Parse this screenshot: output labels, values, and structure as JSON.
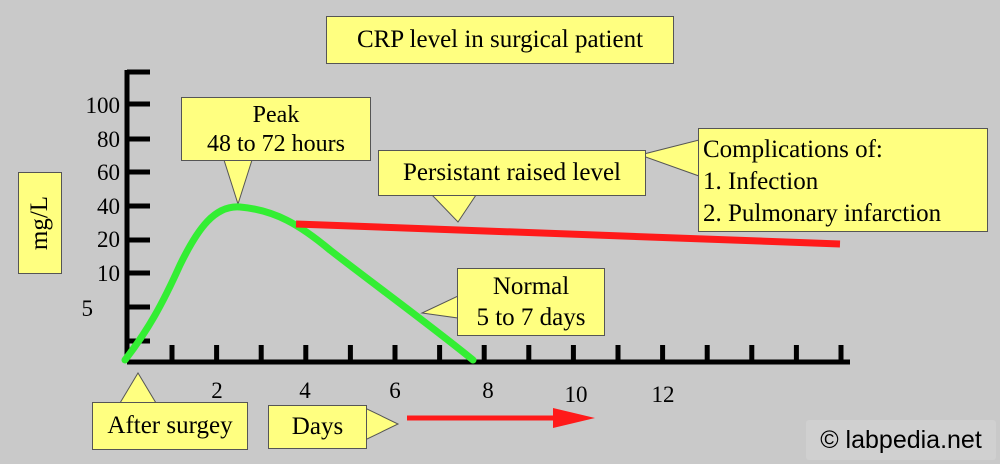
{
  "title": "CRP level in surgical patient",
  "y_axis": {
    "label": "mg/L",
    "tick_labels": [
      "100",
      "80",
      "60",
      "40",
      "20",
      "10",
      "5"
    ]
  },
  "x_axis": {
    "label": "Days",
    "tick_labels": [
      "2",
      "4",
      "6",
      "8",
      "10",
      "12"
    ]
  },
  "callouts": {
    "peak": [
      "Peak",
      "48 to 72 hours"
    ],
    "persistent": "Persistant raised level",
    "complications": [
      "Complications of:",
      "1. Infection",
      "2. Pulmonary infarction"
    ],
    "normal": [
      "Normal",
      "5 to 7 days"
    ],
    "start": "After surgey"
  },
  "watermark": "© labpedia.net",
  "colors": {
    "background": "#c9c9c9",
    "callout_fill": "#ffff80",
    "normal_curve": "#33ee33",
    "persistent_line": "#ff1a1a",
    "axis": "#000000"
  }
}
